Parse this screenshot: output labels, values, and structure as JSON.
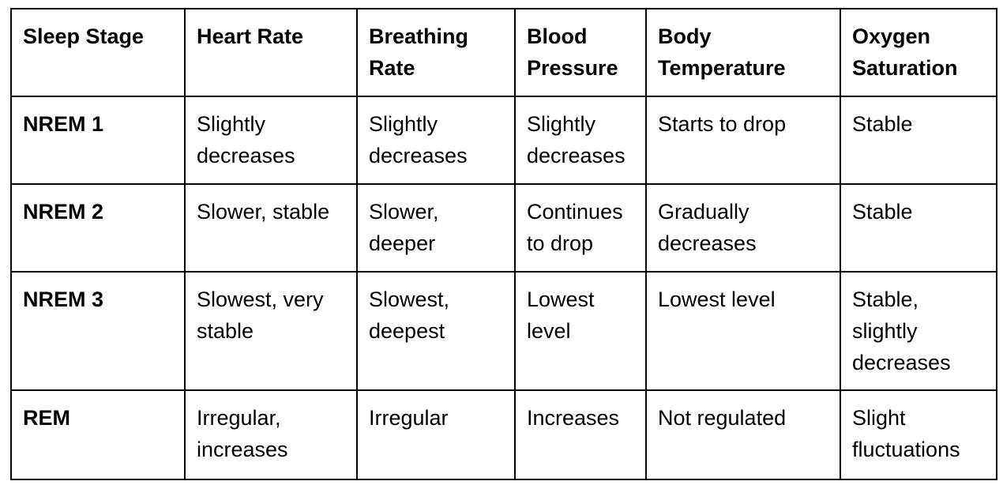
{
  "table": {
    "headers": [
      "Sleep Stage",
      "Heart Rate",
      "Breathing Rate",
      "Blood Pressure",
      "Body Temperature",
      "Oxygen Saturation"
    ],
    "rows": [
      [
        "NREM 1",
        "Slightly decreases",
        "Slightly decreases",
        "Slightly decreases",
        "Starts to drop",
        "Stable"
      ],
      [
        "NREM 2",
        "Slower, stable",
        "Slower, deeper",
        "Continues to drop",
        "Gradually decreases",
        "Stable"
      ],
      [
        "NREM 3",
        "Slowest, very stable",
        "Slowest, deepest",
        "Lowest level",
        "Lowest level",
        "Stable, slightly decreases"
      ],
      [
        "REM",
        "Irregular, increases",
        "Irregular",
        "Increases",
        "Not regulated",
        "Slight fluctuations"
      ]
    ]
  }
}
